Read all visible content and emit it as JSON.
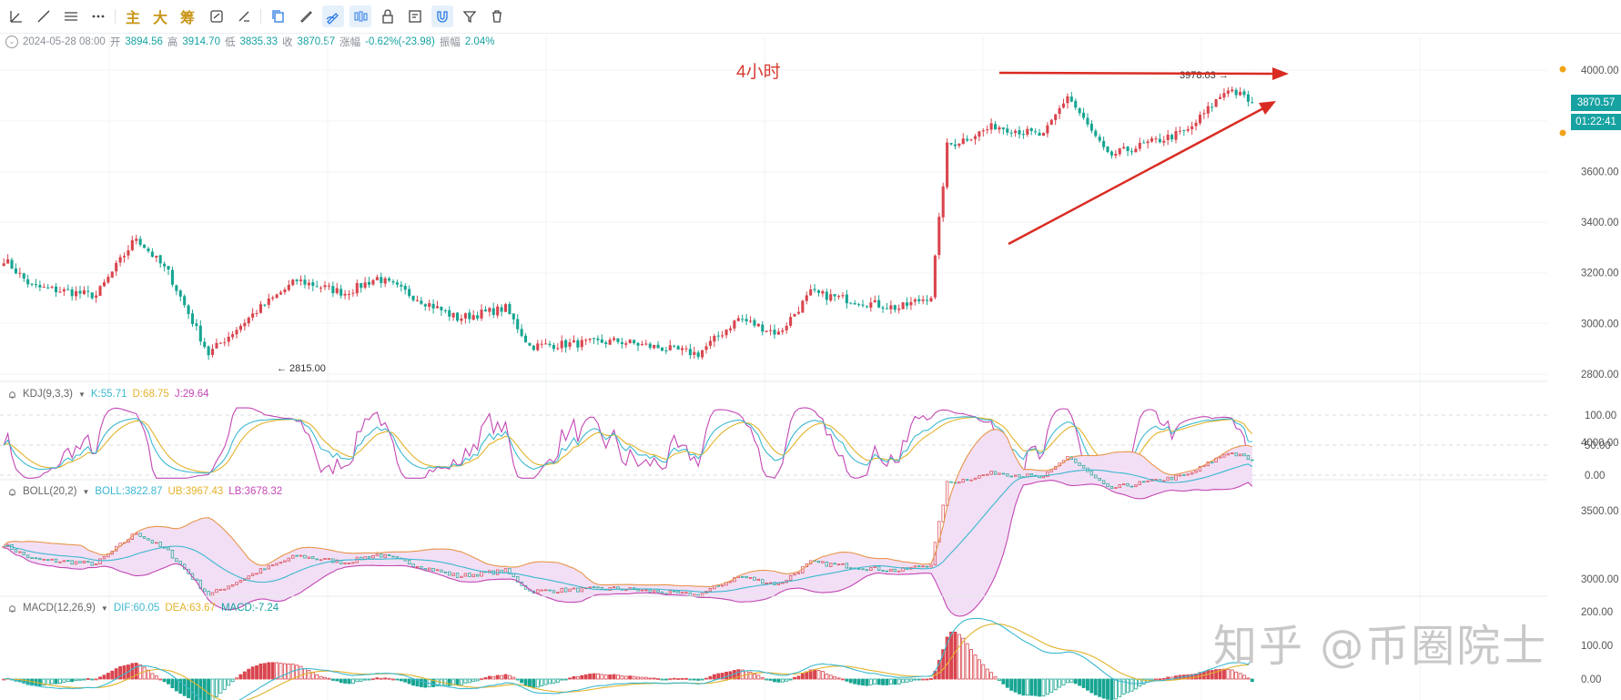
{
  "toolbar": {
    "cn_labels": [
      "主",
      "大",
      "筹"
    ]
  },
  "header": {
    "datetime": "2024-05-28 08:00",
    "open_label": "开",
    "open": "3894.56",
    "high_label": "高",
    "high": "3914.70",
    "low_label": "低",
    "low": "3835.33",
    "close_label": "收",
    "close": "3870.57",
    "change_label": "涨幅",
    "change": "-0.62%(-23.98)",
    "amplitude_label": "振幅",
    "amplitude": "2.04%"
  },
  "annotation": "4小时",
  "price_tag": "3870.57",
  "countdown_tag": "01:22:41",
  "high_marker": "3978.03",
  "low_marker": "2815.00",
  "kdj": {
    "name": "KDJ(9,3,3)",
    "k": "K:55.71",
    "d": "D:68.75",
    "j": "J:29.64"
  },
  "boll": {
    "name": "BOLL(20,2)",
    "mid": "BOLL:3822.87",
    "ub": "UB:3967.43",
    "lb": "LB:3678.32"
  },
  "macd": {
    "name": "MACD(12,26,9)",
    "dif": "DIF:60.05",
    "dea": "DEA:63.67",
    "macd": "MACD:-7.24"
  },
  "watermark": "知乎 @币圈院士",
  "colors": {
    "up": "#d9454e",
    "down": "#17a592",
    "accent": "#17a2a2",
    "arrow": "#d92b22",
    "k_line": "#3bb8cf",
    "d_line": "#e3b22b",
    "j_line": "#c347b4"
  },
  "chart_data": [
    {
      "type": "candlestick",
      "interval": "4小时",
      "ylim": [
        2700,
        4100
      ],
      "yticks": [
        2800,
        3000,
        3200,
        3400,
        3600,
        4000
      ],
      "ytick_labels": [
        "2800.00",
        "3000.00",
        "3200.00",
        "3400.00",
        "3600.00",
        "4000.00"
      ],
      "last_close": 3870.57,
      "high": 3978.03,
      "low": 2815.0,
      "segments": [
        {
          "from": 3270,
          "to": 3145,
          "count": 8
        },
        {
          "from": 3145,
          "to": 3110,
          "count": 16
        },
        {
          "from": 3110,
          "to": 3340,
          "count": 10
        },
        {
          "from": 3340,
          "to": 3200,
          "count": 8
        },
        {
          "from": 3200,
          "to": 2880,
          "count": 10
        },
        {
          "from": 2880,
          "to": 3050,
          "count": 12
        },
        {
          "from": 3050,
          "to": 3170,
          "count": 10
        },
        {
          "from": 3170,
          "to": 3120,
          "count": 12
        },
        {
          "from": 3120,
          "to": 3180,
          "count": 8
        },
        {
          "from": 3180,
          "to": 3020,
          "count": 20
        },
        {
          "from": 3020,
          "to": 3060,
          "count": 12
        },
        {
          "from": 3060,
          "to": 2910,
          "count": 6
        },
        {
          "from": 2910,
          "to": 2930,
          "count": 22
        },
        {
          "from": 2930,
          "to": 2880,
          "count": 20
        },
        {
          "from": 2880,
          "to": 3020,
          "count": 10
        },
        {
          "from": 3020,
          "to": 2960,
          "count": 10
        },
        {
          "from": 2960,
          "to": 3120,
          "count": 8
        },
        {
          "from": 3120,
          "to": 3060,
          "count": 22
        },
        {
          "from": 3060,
          "to": 3110,
          "count": 8
        },
        {
          "from": 3110,
          "to": 3700,
          "count": 4
        },
        {
          "from": 3700,
          "to": 3780,
          "count": 12
        },
        {
          "from": 3780,
          "to": 3740,
          "count": 12
        },
        {
          "from": 3740,
          "to": 3900,
          "count": 6
        },
        {
          "from": 3900,
          "to": 3660,
          "count": 10
        },
        {
          "from": 3660,
          "to": 3760,
          "count": 20
        },
        {
          "from": 3760,
          "to": 3930,
          "count": 10
        },
        {
          "from": 3930,
          "to": 3871,
          "count": 6
        }
      ]
    },
    {
      "type": "line",
      "name": "KDJ(9,3,3)",
      "yticks": [
        0,
        50,
        100
      ],
      "ytick_labels": [
        "0.00",
        "50.00",
        "100.00"
      ],
      "ylim": [
        -10,
        120
      ],
      "series": [
        {
          "name": "K",
          "last": 55.71
        },
        {
          "name": "D",
          "last": 68.75
        },
        {
          "name": "J",
          "last": 29.64
        }
      ]
    },
    {
      "type": "line",
      "name": "BOLL(20,2)",
      "yticks": [
        3000,
        3500,
        4000
      ],
      "ytick_labels": [
        "3000.00",
        "3500.00",
        "4000.00"
      ],
      "ylim": [
        2700,
        4100
      ],
      "series": [
        {
          "name": "BOLL",
          "last": 3822.87
        },
        {
          "name": "UB",
          "last": 3967.43
        },
        {
          "name": "LB",
          "last": 3678.32
        }
      ]
    },
    {
      "type": "bar",
      "name": "MACD(12,26,9)",
      "yticks": [
        0,
        100,
        200
      ],
      "ytick_labels": [
        "0.00",
        "100.00",
        "200.00"
      ],
      "ylim": [
        -30,
        230
      ],
      "series": [
        {
          "name": "DIF",
          "last": 60.05
        },
        {
          "name": "DEA",
          "last": 63.67
        },
        {
          "name": "MACD",
          "last": -7.24
        }
      ]
    }
  ]
}
